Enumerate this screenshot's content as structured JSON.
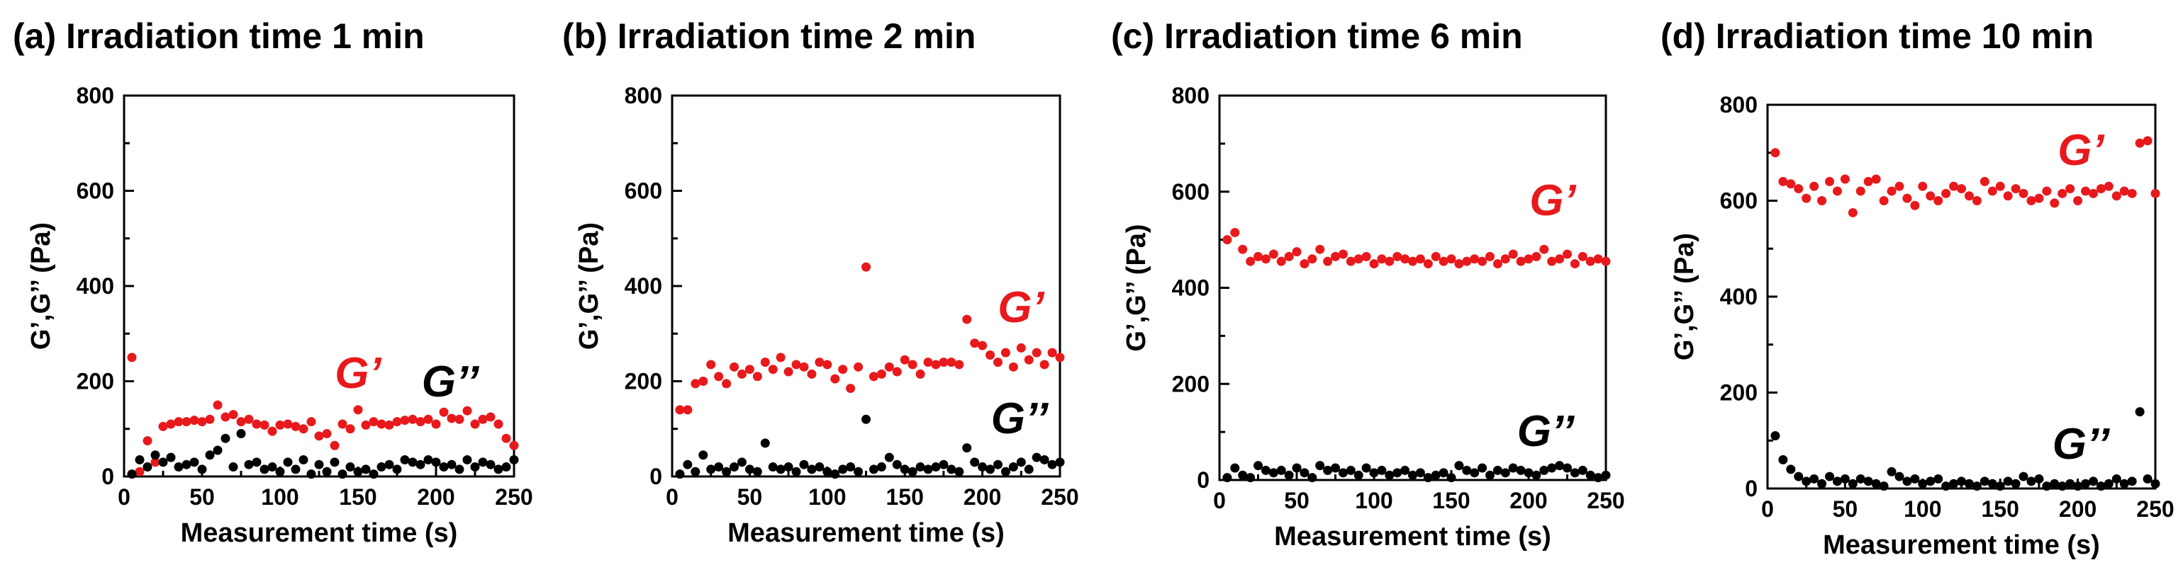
{
  "chart_data": [
    {
      "type": "scatter",
      "title": "(a) Irradiation time 1 min",
      "xlabel": "Measurement time (s)",
      "ylabel": "G’,G’’ (Pa)",
      "xlim": [
        0,
        250
      ],
      "ylim": [
        0,
        800
      ],
      "xticks": [
        "0",
        "50",
        "100",
        "150",
        "200",
        "250"
      ],
      "yticks": [
        "0",
        "200",
        "400",
        "600",
        "800"
      ],
      "grid": false,
      "series": [
        {
          "name": "G’",
          "color": "#e8191c",
          "label_color": "#e8191c",
          "x": [
            5,
            10,
            15,
            20,
            25,
            30,
            35,
            40,
            45,
            50,
            55,
            60,
            65,
            70,
            75,
            80,
            85,
            90,
            95,
            100,
            105,
            110,
            115,
            120,
            125,
            130,
            135,
            140,
            145,
            150,
            155,
            160,
            165,
            170,
            175,
            180,
            185,
            190,
            195,
            200,
            205,
            210,
            215,
            220,
            225,
            230,
            235,
            240,
            245,
            250
          ],
          "values": [
            250,
            10,
            75,
            30,
            105,
            110,
            115,
            115,
            118,
            115,
            120,
            150,
            125,
            130,
            115,
            120,
            110,
            108,
            95,
            108,
            110,
            105,
            100,
            115,
            85,
            90,
            65,
            110,
            100,
            140,
            108,
            115,
            110,
            108,
            115,
            118,
            120,
            115,
            120,
            110,
            135,
            122,
            120,
            138,
            110,
            120,
            125,
            110,
            80,
            65
          ]
        },
        {
          "name": "G’’",
          "color": "#000000",
          "label_color": "#000000",
          "x": [
            5,
            10,
            15,
            20,
            25,
            30,
            35,
            40,
            45,
            50,
            55,
            60,
            65,
            70,
            75,
            80,
            85,
            90,
            95,
            100,
            105,
            110,
            115,
            120,
            125,
            130,
            135,
            140,
            145,
            150,
            155,
            160,
            165,
            170,
            175,
            180,
            185,
            190,
            195,
            200,
            205,
            210,
            215,
            220,
            225,
            230,
            235,
            240,
            245,
            250
          ],
          "values": [
            5,
            35,
            20,
            45,
            30,
            40,
            20,
            25,
            30,
            15,
            45,
            55,
            80,
            20,
            90,
            25,
            30,
            15,
            20,
            10,
            30,
            15,
            35,
            5,
            25,
            10,
            30,
            5,
            20,
            10,
            15,
            5,
            20,
            25,
            15,
            35,
            30,
            25,
            35,
            30,
            20,
            25,
            15,
            35,
            20,
            30,
            25,
            15,
            20,
            35
          ]
        }
      ],
      "series_labels": [
        "G’",
        "G’’"
      ]
    },
    {
      "type": "scatter",
      "title": "(b) Irradiation time 2 min",
      "xlabel": "Measurement time (s)",
      "ylabel": "G’,G’’ (Pa)",
      "xlim": [
        0,
        250
      ],
      "ylim": [
        0,
        800
      ],
      "xticks": [
        "0",
        "50",
        "100",
        "150",
        "200",
        "250"
      ],
      "yticks": [
        "0",
        "200",
        "400",
        "600",
        "800"
      ],
      "grid": false,
      "series": [
        {
          "name": "G’",
          "color": "#e8191c",
          "label_color": "#e8191c",
          "x": [
            5,
            10,
            15,
            20,
            25,
            30,
            35,
            40,
            45,
            50,
            55,
            60,
            65,
            70,
            75,
            80,
            85,
            90,
            95,
            100,
            105,
            110,
            115,
            120,
            125,
            130,
            135,
            140,
            145,
            150,
            155,
            160,
            165,
            170,
            175,
            180,
            185,
            190,
            195,
            200,
            205,
            210,
            215,
            220,
            225,
            230,
            235,
            240,
            245,
            250
          ],
          "values": [
            140,
            140,
            195,
            200,
            235,
            210,
            195,
            230,
            215,
            225,
            210,
            240,
            225,
            250,
            220,
            235,
            230,
            215,
            240,
            235,
            205,
            225,
            185,
            230,
            440,
            210,
            215,
            230,
            220,
            245,
            235,
            215,
            240,
            235,
            240,
            240,
            235,
            330,
            280,
            275,
            255,
            240,
            260,
            230,
            270,
            245,
            260,
            235,
            260,
            250
          ]
        },
        {
          "name": "G’’",
          "color": "#000000",
          "label_color": "#000000",
          "x": [
            5,
            10,
            15,
            20,
            25,
            30,
            35,
            40,
            45,
            50,
            55,
            60,
            65,
            70,
            75,
            80,
            85,
            90,
            95,
            100,
            105,
            110,
            115,
            120,
            125,
            130,
            135,
            140,
            145,
            150,
            155,
            160,
            165,
            170,
            175,
            180,
            185,
            190,
            195,
            200,
            205,
            210,
            215,
            220,
            225,
            230,
            235,
            240,
            245,
            250
          ],
          "values": [
            5,
            25,
            10,
            45,
            15,
            20,
            10,
            20,
            30,
            15,
            10,
            70,
            20,
            15,
            20,
            10,
            25,
            15,
            20,
            10,
            5,
            15,
            20,
            10,
            120,
            15,
            20,
            40,
            25,
            15,
            10,
            20,
            15,
            20,
            25,
            15,
            10,
            60,
            30,
            20,
            15,
            25,
            10,
            20,
            30,
            15,
            40,
            35,
            25,
            30
          ]
        }
      ],
      "series_labels": [
        "G’",
        "G’’"
      ]
    },
    {
      "type": "scatter",
      "title": "(c) Irradiation time 6 min",
      "xlabel": "Measurement time (s)",
      "ylabel": "G’,G’’ (Pa)",
      "xlim": [
        0,
        250
      ],
      "ylim": [
        0,
        800
      ],
      "xticks": [
        "0",
        "50",
        "100",
        "150",
        "200",
        "250"
      ],
      "yticks": [
        "0",
        "200",
        "400",
        "600",
        "800"
      ],
      "grid": false,
      "series": [
        {
          "name": "G’",
          "color": "#e8191c",
          "label_color": "#e8191c",
          "x": [
            5,
            10,
            15,
            20,
            25,
            30,
            35,
            40,
            45,
            50,
            55,
            60,
            65,
            70,
            75,
            80,
            85,
            90,
            95,
            100,
            105,
            110,
            115,
            120,
            125,
            130,
            135,
            140,
            145,
            150,
            155,
            160,
            165,
            170,
            175,
            180,
            185,
            190,
            195,
            200,
            205,
            210,
            215,
            220,
            225,
            230,
            235,
            240,
            245,
            250
          ],
          "values": [
            500,
            515,
            480,
            455,
            465,
            460,
            470,
            455,
            465,
            475,
            450,
            460,
            480,
            455,
            465,
            470,
            455,
            460,
            465,
            450,
            460,
            455,
            465,
            460,
            455,
            460,
            450,
            465,
            455,
            460,
            450,
            455,
            460,
            455,
            465,
            450,
            460,
            470,
            455,
            460,
            465,
            480,
            455,
            460,
            470,
            450,
            465,
            455,
            460,
            455
          ]
        },
        {
          "name": "G’’",
          "color": "#000000",
          "label_color": "#000000",
          "x": [
            5,
            10,
            15,
            20,
            25,
            30,
            35,
            40,
            45,
            50,
            55,
            60,
            65,
            70,
            75,
            80,
            85,
            90,
            95,
            100,
            105,
            110,
            115,
            120,
            125,
            130,
            135,
            140,
            145,
            150,
            155,
            160,
            165,
            170,
            175,
            180,
            185,
            190,
            195,
            200,
            205,
            210,
            215,
            220,
            225,
            230,
            235,
            240,
            245,
            250
          ],
          "values": [
            5,
            25,
            10,
            5,
            30,
            20,
            15,
            20,
            10,
            25,
            15,
            5,
            30,
            20,
            25,
            15,
            20,
            10,
            25,
            15,
            20,
            10,
            15,
            20,
            10,
            15,
            5,
            10,
            15,
            5,
            30,
            20,
            15,
            25,
            10,
            20,
            15,
            25,
            20,
            15,
            10,
            20,
            25,
            30,
            25,
            15,
            20,
            10,
            5,
            10
          ]
        }
      ],
      "series_labels": [
        "G’",
        "G’’"
      ]
    },
    {
      "type": "scatter",
      "title": "(d) Irradiation time 10 min",
      "xlabel": "Measurement time (s)",
      "ylabel": "G’,G’’ (Pa)",
      "xlim": [
        0,
        250
      ],
      "ylim": [
        0,
        800
      ],
      "xticks": [
        "0",
        "50",
        "100",
        "150",
        "200",
        "250"
      ],
      "yticks": [
        "0",
        "200",
        "400",
        "600",
        "800"
      ],
      "grid": false,
      "series": [
        {
          "name": "G’",
          "color": "#e8191c",
          "label_color": "#e8191c",
          "x": [
            5,
            10,
            15,
            20,
            25,
            30,
            35,
            40,
            45,
            50,
            55,
            60,
            65,
            70,
            75,
            80,
            85,
            90,
            95,
            100,
            105,
            110,
            115,
            120,
            125,
            130,
            135,
            140,
            145,
            150,
            155,
            160,
            165,
            170,
            175,
            180,
            185,
            190,
            195,
            200,
            205,
            210,
            215,
            220,
            225,
            230,
            235,
            240,
            245,
            250
          ],
          "values": [
            700,
            640,
            635,
            625,
            605,
            630,
            600,
            640,
            620,
            645,
            575,
            620,
            640,
            645,
            600,
            620,
            630,
            605,
            590,
            630,
            610,
            600,
            615,
            630,
            625,
            610,
            600,
            640,
            620,
            630,
            610,
            625,
            615,
            600,
            605,
            620,
            595,
            615,
            625,
            600,
            620,
            615,
            625,
            630,
            610,
            620,
            615,
            720,
            725,
            615
          ]
        },
        {
          "name": "G’’",
          "color": "#000000",
          "label_color": "#000000",
          "x": [
            5,
            10,
            15,
            20,
            25,
            30,
            35,
            40,
            45,
            50,
            55,
            60,
            65,
            70,
            75,
            80,
            85,
            90,
            95,
            100,
            105,
            110,
            115,
            120,
            125,
            130,
            135,
            140,
            145,
            150,
            155,
            160,
            165,
            170,
            175,
            180,
            185,
            190,
            195,
            200,
            205,
            210,
            215,
            220,
            225,
            230,
            235,
            240,
            245,
            250
          ],
          "values": [
            110,
            60,
            40,
            25,
            15,
            20,
            10,
            25,
            15,
            20,
            10,
            20,
            15,
            10,
            5,
            35,
            25,
            15,
            20,
            10,
            15,
            20,
            5,
            10,
            15,
            10,
            5,
            15,
            10,
            5,
            15,
            10,
            25,
            15,
            20,
            5,
            10,
            5,
            10,
            5,
            10,
            15,
            5,
            10,
            20,
            10,
            15,
            160,
            20,
            10
          ]
        }
      ],
      "series_labels": [
        "G’",
        "G’’"
      ]
    }
  ]
}
